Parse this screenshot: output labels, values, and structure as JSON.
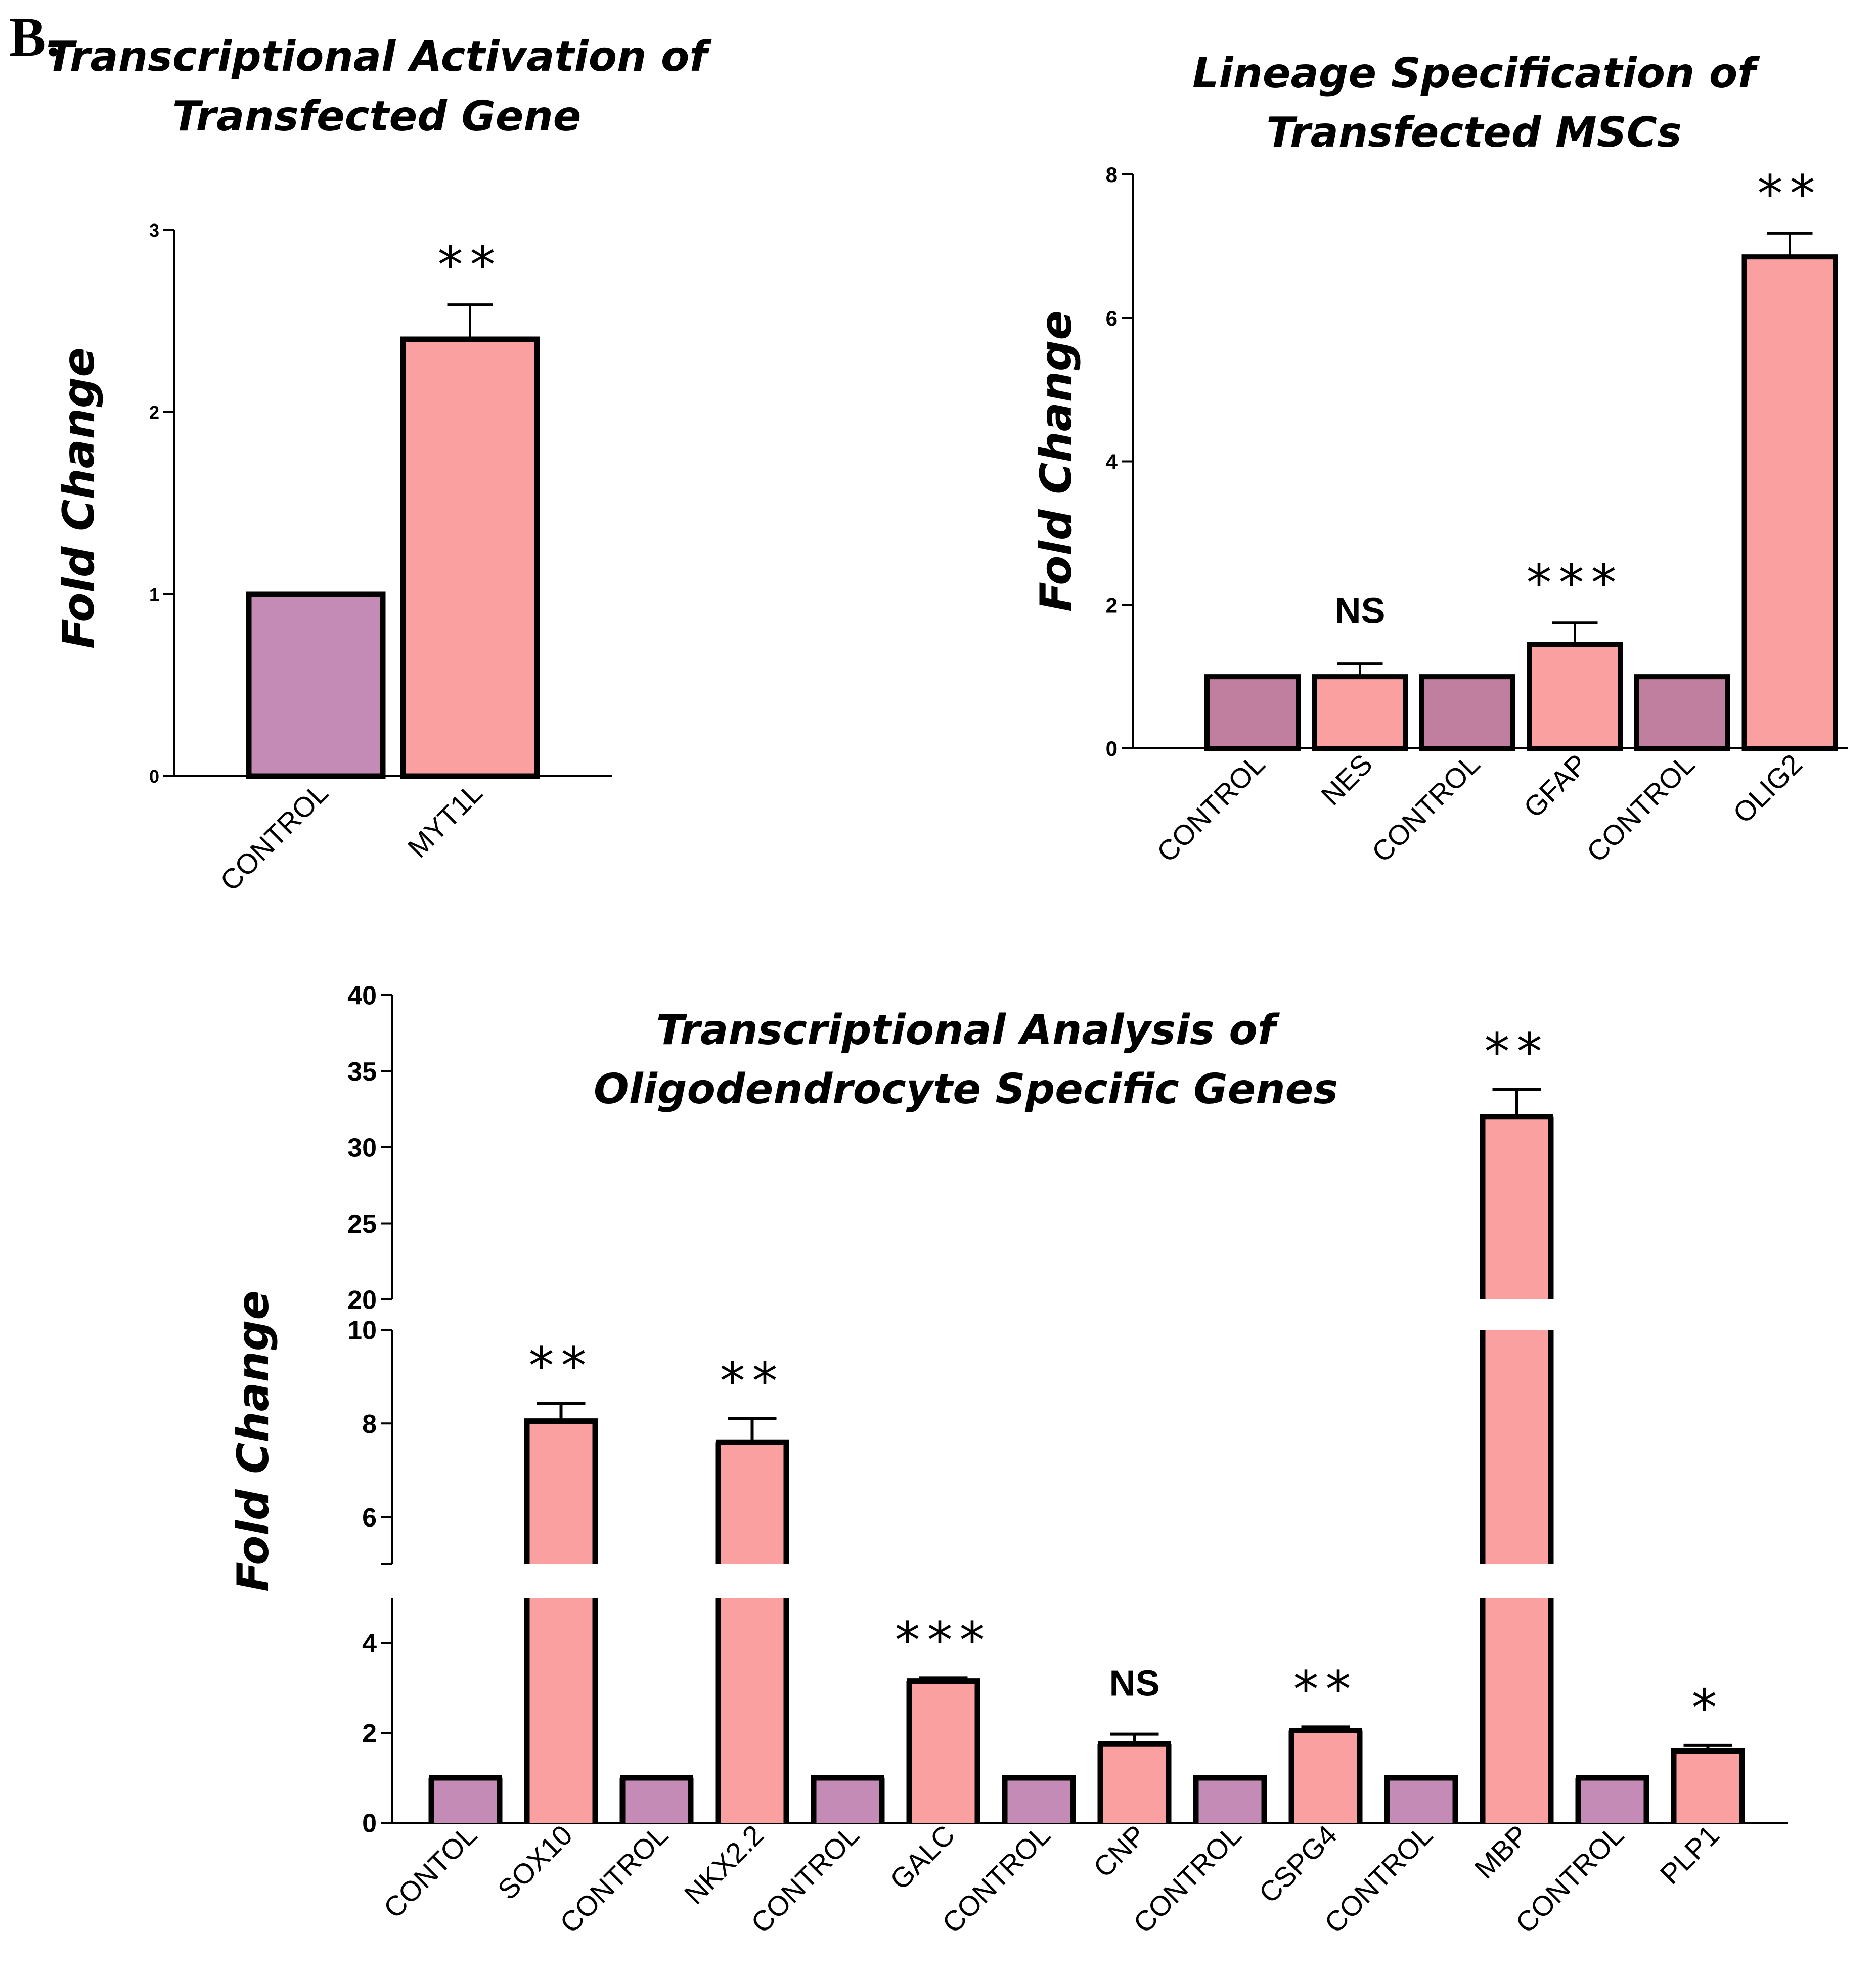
{
  "panel_label": "B.",
  "colors": {
    "control": "#c38bb5",
    "control_dark": "#c07f9f",
    "treated": "#fba0a0",
    "edge": "#000000"
  },
  "chart_data": [
    {
      "id": "chart1",
      "type": "bar",
      "title": [
        "Transcriptional Activation of",
        "Transfected Gene"
      ],
      "ylabel": "Fold Change",
      "xlabel": "",
      "ylim": [
        0,
        3
      ],
      "yticks": [
        0,
        1,
        2,
        3
      ],
      "grid": false,
      "categories": [
        "CONTROL",
        "MYT1L"
      ],
      "values": [
        1.0,
        2.4
      ],
      "errors": [
        0,
        0.19
      ],
      "groups": [
        "control",
        "treated"
      ],
      "significance": [
        "",
        "**"
      ]
    },
    {
      "id": "chart2",
      "type": "bar",
      "title": [
        "Lineage Specification of",
        "Transfected MSCs"
      ],
      "ylabel": "Fold Change",
      "xlabel": "",
      "ylim": [
        0,
        8
      ],
      "yticks": [
        0,
        2,
        4,
        6,
        8
      ],
      "grid": false,
      "categories": [
        "CONTROL",
        "NES",
        "CONTROL",
        "GFAP",
        "CONTROL",
        "OLIG2"
      ],
      "values": [
        1.0,
        1.0,
        1.0,
        1.45,
        1.0,
        6.85
      ],
      "errors": [
        0,
        0.18,
        0,
        0.3,
        0,
        0.33
      ],
      "groups": [
        "control",
        "treated",
        "control",
        "treated",
        "control",
        "treated"
      ],
      "significance": [
        "",
        "NS",
        "",
        "***",
        "",
        "**"
      ]
    },
    {
      "id": "chart3",
      "type": "bar",
      "title": [
        "Transcriptional Analysis of",
        "Oligodendrocyte Specific Genes"
      ],
      "ylabel": "Fold Change",
      "xlabel": "",
      "axis_segments": [
        {
          "range": [
            0,
            5
          ],
          "ticks": [
            0,
            2,
            4
          ]
        },
        {
          "range": [
            5,
            10
          ],
          "ticks": [
            6,
            8,
            10
          ]
        },
        {
          "range": [
            20,
            40
          ],
          "ticks": [
            20,
            25,
            30,
            35,
            40
          ]
        }
      ],
      "grid": false,
      "categories": [
        "CONTOL",
        "SOX10",
        "CONTROL",
        "NKX2.2",
        "CONTROL",
        "GALC",
        "CONTROL",
        "CNP",
        "CONTROL",
        "CSPG4",
        "CONTROL",
        "MBP",
        "CONTROL",
        "PLP1"
      ],
      "values": [
        1.0,
        8.05,
        1.0,
        7.6,
        1.0,
        3.15,
        1.0,
        1.75,
        1.0,
        2.05,
        1.0,
        32.0,
        1.0,
        1.6
      ],
      "errors": [
        0,
        0.38,
        0,
        0.5,
        0,
        0.07,
        0,
        0.22,
        0,
        0.08,
        0,
        1.8,
        0,
        0.12
      ],
      "groups": [
        "control",
        "treated",
        "control",
        "treated",
        "control",
        "treated",
        "control",
        "treated",
        "control",
        "treated",
        "control",
        "treated",
        "control",
        "treated"
      ],
      "significance": [
        "",
        "**",
        "",
        "**",
        "",
        "***",
        "",
        "NS",
        "",
        "**",
        "",
        "**",
        "",
        "*"
      ]
    }
  ]
}
